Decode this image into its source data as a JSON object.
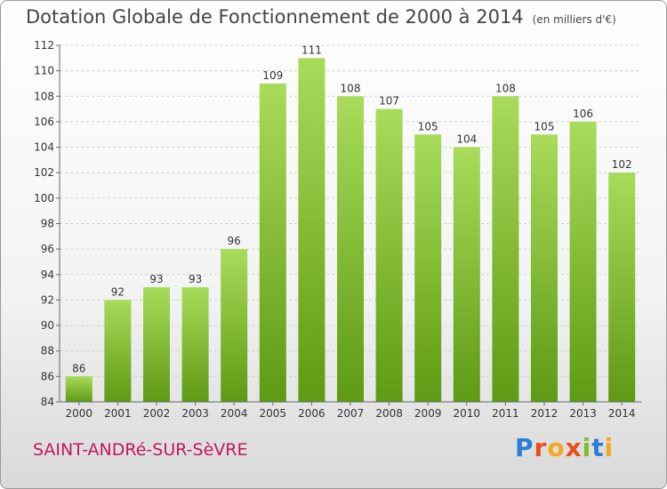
{
  "chart_data": {
    "type": "bar",
    "title": "Dotation Globale de Fonctionnement de 2000 à 2014",
    "unit": "(en milliers d'€)",
    "categories": [
      "2000",
      "2001",
      "2002",
      "2003",
      "2004",
      "2005",
      "2006",
      "2007",
      "2008",
      "2009",
      "2010",
      "2011",
      "2012",
      "2013",
      "2014"
    ],
    "values": [
      86,
      92,
      93,
      93,
      96,
      109,
      111,
      108,
      107,
      105,
      104,
      108,
      105,
      106,
      102
    ],
    "yticks": [
      84,
      86,
      88,
      90,
      92,
      94,
      96,
      98,
      100,
      102,
      104,
      106,
      108,
      110,
      112
    ],
    "ylim": [
      84,
      112
    ],
    "grid": true,
    "bar_color_light": "#a8dc5a",
    "bar_color_dark": "#5e9a14"
  },
  "footer": {
    "commune": "SAINT-ANDRé-SUR-SèVRE",
    "commune_color": "#c2185b",
    "brand_letters": [
      {
        "ch": "P",
        "color": "#2a7fd4"
      },
      {
        "ch": "r",
        "color": "#e94e1b"
      },
      {
        "ch": "o",
        "color": "#f4a81d"
      },
      {
        "ch": "x",
        "color": "#e94e1b"
      },
      {
        "ch": "i",
        "color": "#7bbf2a"
      },
      {
        "ch": "t",
        "color": "#2a7fd4"
      },
      {
        "ch": "i",
        "color": "#f4a81d"
      }
    ]
  }
}
